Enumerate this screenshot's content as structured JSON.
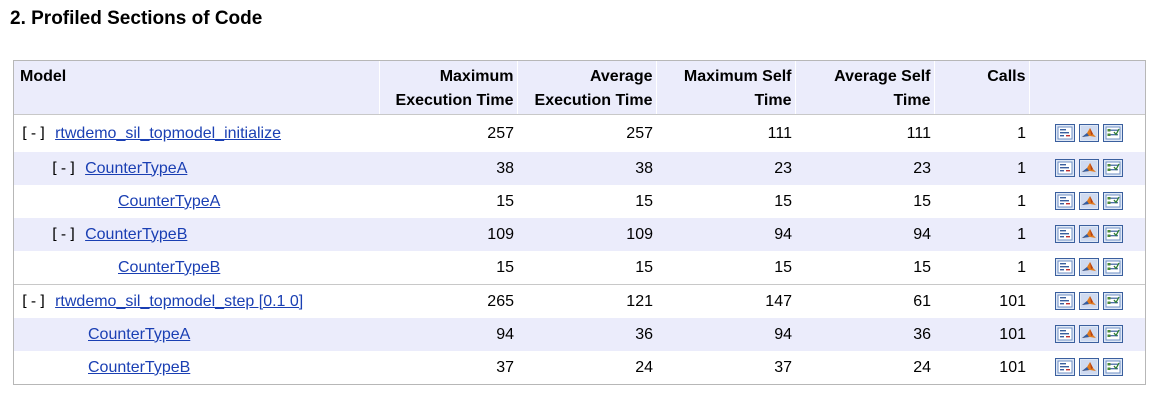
{
  "section_title": "2. Profiled Sections of Code",
  "table": {
    "headers": {
      "model": "Model",
      "max_exec_line1": "Maximum",
      "max_exec_line2": "Execution Time",
      "avg_exec_line1": "Average",
      "avg_exec_line2": "Execution Time",
      "max_self_line1": "Maximum Self",
      "max_self_line2": "Time",
      "avg_self_line1": "Average Self",
      "avg_self_line2": "Time",
      "calls": "Calls"
    },
    "toggle_label": "[-]",
    "rows": [
      {
        "toggle": "[-]",
        "name": "rtwdemo_sil_topmodel_initialize",
        "max_exec": "257",
        "avg_exec": "257",
        "max_self": "111",
        "avg_self": "111",
        "calls": "1"
      },
      {
        "toggle": "[-]",
        "name": "CounterTypeA",
        "max_exec": "38",
        "avg_exec": "38",
        "max_self": "23",
        "avg_self": "23",
        "calls": "1"
      },
      {
        "toggle": "",
        "name": "CounterTypeA",
        "max_exec": "15",
        "avg_exec": "15",
        "max_self": "15",
        "avg_self": "15",
        "calls": "1"
      },
      {
        "toggle": "[-]",
        "name": "CounterTypeB",
        "max_exec": "109",
        "avg_exec": "109",
        "max_self": "94",
        "avg_self": "94",
        "calls": "1"
      },
      {
        "toggle": "",
        "name": "CounterTypeB",
        "max_exec": "15",
        "avg_exec": "15",
        "max_self": "15",
        "avg_self": "15",
        "calls": "1"
      },
      {
        "toggle": "[-]",
        "name": "rtwdemo_sil_topmodel_step [0.1 0]",
        "max_exec": "265",
        "avg_exec": "121",
        "max_self": "147",
        "avg_self": "61",
        "calls": "101"
      },
      {
        "toggle": "",
        "name": "CounterTypeA",
        "max_exec": "94",
        "avg_exec": "36",
        "max_self": "94",
        "avg_self": "36",
        "calls": "101"
      },
      {
        "toggle": "",
        "name": "CounterTypeB",
        "max_exec": "37",
        "avg_exec": "24",
        "max_self": "37",
        "avg_self": "24",
        "calls": "101"
      }
    ],
    "row_icons": [
      "code-report-icon",
      "matlab-icon",
      "model-icon"
    ]
  },
  "colors": {
    "header_bg": "#ebecfb",
    "stripe_bg": "#ebecfb",
    "link": "#1a3fb3",
    "icon_border": "#3a5f9e"
  }
}
